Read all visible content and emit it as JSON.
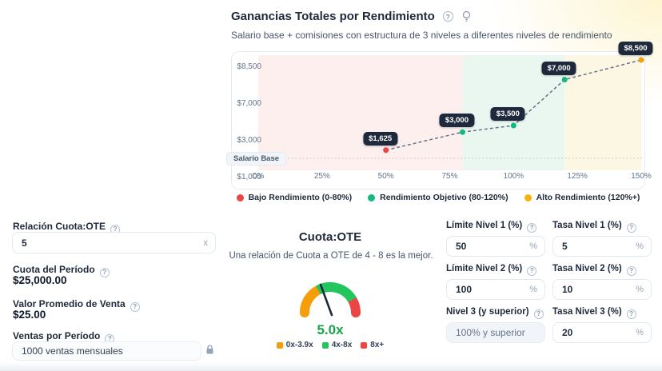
{
  "header": {
    "title": "Ganancias Totales por Rendimiento",
    "subtitle": "Salario base + comisiones con estructura de 3 niveles a diferentes niveles de rendimiento",
    "help_glyph": "?"
  },
  "chart_data": {
    "type": "line",
    "title": "Ganancias Totales por Rendimiento",
    "x_ticks": [
      {
        "pct": 0,
        "label": "0%"
      },
      {
        "pct": 25,
        "label": "25%"
      },
      {
        "pct": 50,
        "label": "50%"
      },
      {
        "pct": 75,
        "label": "75%"
      },
      {
        "pct": 100,
        "label": "100%"
      },
      {
        "pct": 125,
        "label": "125%"
      },
      {
        "pct": 150,
        "label": "150%"
      }
    ],
    "y_ticks": [
      "$1,000",
      "$3,000",
      "$7,000",
      "$8,500"
    ],
    "x_range_pct": [
      0,
      150
    ],
    "y_range": [
      1000,
      8500
    ],
    "baseline": {
      "label": "Salario Base",
      "value": 1000
    },
    "points": [
      {
        "x_pct": 50,
        "y": 1625,
        "label": "$1,625",
        "marker_color": "#ef4444"
      },
      {
        "x_pct": 80,
        "y": 3000,
        "label": "$3,000",
        "marker_color": "#10b981"
      },
      {
        "x_pct": 100,
        "y": 3500,
        "label": "$3,500",
        "marker_color": "#10b981"
      },
      {
        "x_pct": 120,
        "y": 7000,
        "label": "$7,000",
        "marker_color": "#10b981"
      },
      {
        "x_pct": 150,
        "y": 8500,
        "label": "$8,500",
        "marker_color": "#f59e0b"
      }
    ],
    "zones": [
      {
        "label": "Bajo Rendimiento (0-80%)",
        "from_pct": 0,
        "to_pct": 80,
        "fill": "#fcefee",
        "dot": "#ef4444"
      },
      {
        "label": "Rendimiento Objetivo (80-120%)",
        "from_pct": 80,
        "to_pct": 120,
        "fill": "#eaf7f0",
        "dot": "#10b981"
      },
      {
        "label": "Alto Rendimiento (120%+)",
        "from_pct": 120,
        "to_pct": 150,
        "fill": "#fcf7e2",
        "dot": "#f5b50a"
      }
    ],
    "line_color": "#64748b",
    "legend_position": "bottom",
    "grid": false
  },
  "controls_left": {
    "quota_ote": {
      "label": "Relación Cuota:OTE",
      "value": "5",
      "suffix": "x"
    },
    "period_quota": {
      "label": "Cuota del Período",
      "value": "$25,000.00"
    },
    "avg_sale": {
      "label": "Valor Promedio de Venta",
      "value": "$25.00"
    },
    "sales_period": {
      "label": "Ventas por Período",
      "value": "1000 ventas mensuales",
      "locked": true
    }
  },
  "gauge": {
    "title": "Cuota:OTE",
    "subtitle": "Una relación de Cuota a OTE de 4 - 8 es la mejor.",
    "value": "5.0x",
    "value_color": "#16a34a",
    "segments": [
      {
        "label": "0x-3.9x",
        "color": "#f59e0b"
      },
      {
        "label": "4x-8x",
        "color": "#22c55e"
      },
      {
        "label": "8x+",
        "color": "#ef4444"
      }
    ],
    "needle_color": "#1e293b"
  },
  "controls_right": {
    "fields": [
      {
        "label": "Límite Nivel 1 (%)",
        "value": "50",
        "suffix": "%",
        "disabled": false
      },
      {
        "label": "Tasa Nivel 1 (%)",
        "value": "5",
        "suffix": "%",
        "disabled": false
      },
      {
        "label": "Límite Nivel 2 (%)",
        "value": "100",
        "suffix": "%",
        "disabled": false
      },
      {
        "label": "Tasa Nivel 2 (%)",
        "value": "10",
        "suffix": "%",
        "disabled": false
      },
      {
        "label": "Nivel 3 (y superior)",
        "value": "100% y superior",
        "suffix": "",
        "disabled": true
      },
      {
        "label": "Tasa Nivel 3 (%)",
        "value": "20",
        "suffix": "%",
        "disabled": false
      }
    ]
  }
}
